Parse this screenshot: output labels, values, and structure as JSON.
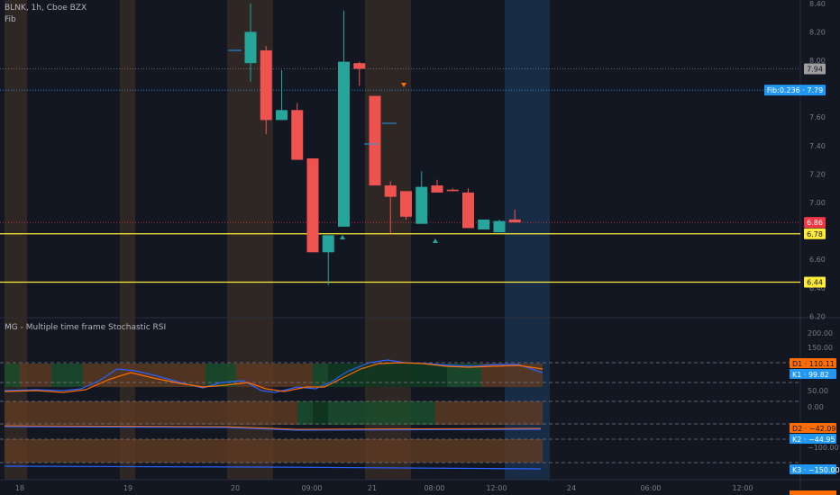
{
  "header": {
    "symbol_line": "BLNK, 1h, Cboe BZX",
    "fib_label": "Fib",
    "indicator_label": "MG - Multiple time frame Stochastic RSI"
  },
  "price_axis": {
    "ticks": [
      "8.40",
      "8.20",
      "8.00",
      "7.80",
      "7.60",
      "7.40",
      "7.20",
      "7.00",
      "6.80",
      "6.60",
      "6.40",
      "6.20"
    ]
  },
  "price_tags": [
    {
      "id": "last-prev",
      "text": "7.94",
      "bg": "#9e9e9e",
      "fg": "#131722"
    },
    {
      "id": "fib-0236",
      "text": "Fib:0.236 · 7.79",
      "bg": "#2196f3",
      "fg": "#ffffff"
    },
    {
      "id": "current",
      "text": "6.86",
      "bg": "#f23645",
      "fg": "#ffffff"
    },
    {
      "id": "level-678",
      "text": "6.78",
      "bg": "#ffeb3b",
      "fg": "#131722"
    },
    {
      "id": "level-644",
      "text": "6.44",
      "bg": "#ffeb3b",
      "fg": "#131722"
    }
  ],
  "osc_axis": {
    "ticks": [
      "200.00",
      "150.00",
      "50.00",
      "0.00",
      "−100.00"
    ]
  },
  "osc_tags": [
    {
      "id": "d1",
      "text": "D1 · 110.11",
      "bg": "#ff6d00",
      "fg": "#131722"
    },
    {
      "id": "k1",
      "text": "K1 · 99.82",
      "bg": "#2196f3",
      "fg": "#ffffff"
    },
    {
      "id": "d2",
      "text": "D2 · −42.09",
      "bg": "#ff6d00",
      "fg": "#131722"
    },
    {
      "id": "k2",
      "text": "K2 · −44.95",
      "bg": "#2196f3",
      "fg": "#ffffff"
    },
    {
      "id": "k3",
      "text": "K3 · −150.00",
      "bg": "#2196f3",
      "fg": "#ffffff"
    }
  ],
  "time_axis": {
    "ticks": [
      "18",
      "19",
      "20",
      "09:00",
      "21",
      "08:00",
      "12:00",
      "24",
      "06:00",
      "12:00"
    ]
  },
  "colors": {
    "up": "#26a69a",
    "down": "#ef5350",
    "session": "#3a2e25",
    "selection": "#1e3a5f",
    "yellow_line": "#ffeb3b",
    "blue_dotted": "#2196f3",
    "red_dotted": "#f23645"
  },
  "chart_data": {
    "type": "candlestick",
    "candles": [
      {
        "o": 7.98,
        "h": 8.4,
        "l": 7.85,
        "c": 8.2
      },
      {
        "o": 8.07,
        "h": 8.1,
        "l": 7.48,
        "c": 7.58
      },
      {
        "o": 7.58,
        "h": 7.93,
        "l": 7.58,
        "c": 7.65
      },
      {
        "o": 7.65,
        "h": 7.7,
        "l": 7.3,
        "c": 7.3
      },
      {
        "o": 7.31,
        "h": 7.31,
        "l": 6.65,
        "c": 6.65
      },
      {
        "o": 6.65,
        "h": 6.77,
        "l": 6.42,
        "c": 6.77
      },
      {
        "o": 6.83,
        "h": 8.35,
        "l": 6.83,
        "c": 7.99
      },
      {
        "o": 7.98,
        "h": 7.99,
        "l": 7.82,
        "c": 7.94
      },
      {
        "o": 7.75,
        "h": 7.75,
        "l": 7.12,
        "c": 7.12
      },
      {
        "o": 7.12,
        "h": 7.15,
        "l": 6.78,
        "c": 7.04
      },
      {
        "o": 7.08,
        "h": 7.08,
        "l": 6.88,
        "c": 6.9
      },
      {
        "o": 6.85,
        "h": 7.22,
        "l": 6.85,
        "c": 7.11
      },
      {
        "o": 7.12,
        "h": 7.16,
        "l": 7.07,
        "c": 7.07
      },
      {
        "o": 7.09,
        "h": 7.1,
        "l": 7.08,
        "c": 7.08
      },
      {
        "o": 7.07,
        "h": 7.1,
        "l": 6.82,
        "c": 6.82
      },
      {
        "o": 6.81,
        "h": 6.88,
        "l": 6.81,
        "c": 6.88
      },
      {
        "o": 6.79,
        "h": 6.88,
        "l": 6.79,
        "c": 6.87
      },
      {
        "o": 6.88,
        "h": 6.95,
        "l": 6.86,
        "c": 6.86
      }
    ],
    "levels": [
      6.78,
      6.44
    ],
    "fib_0236": 7.79
  }
}
